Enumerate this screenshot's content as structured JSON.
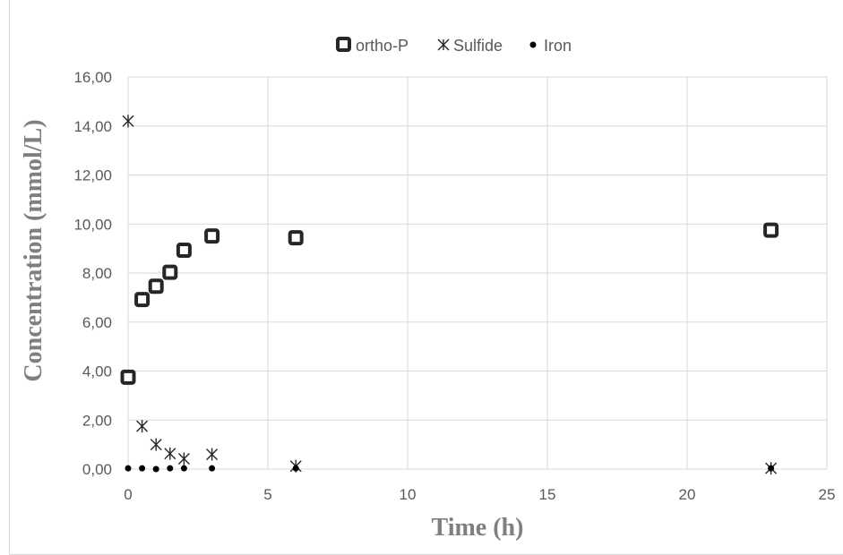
{
  "chart_data": {
    "type": "scatter",
    "title": "",
    "xlabel": "Time (h)",
    "ylabel": "Concentration (mmol/L)",
    "xlim": [
      0,
      25
    ],
    "ylim": [
      0,
      16
    ],
    "x_ticks": [
      "0",
      "5",
      "10",
      "15",
      "20",
      "25"
    ],
    "y_ticks": [
      "0,00",
      "2,00",
      "4,00",
      "6,00",
      "8,00",
      "10,00",
      "12,00",
      "14,00",
      "16,00"
    ],
    "grid": "on",
    "legend_position": "top",
    "series": [
      {
        "name": "ortho-P",
        "marker": "square",
        "color": "#262626",
        "points": [
          [
            0,
            3.75
          ],
          [
            0.5,
            6.92
          ],
          [
            1,
            7.46
          ],
          [
            1.5,
            8.03
          ],
          [
            2,
            8.93
          ],
          [
            3,
            9.51
          ],
          [
            6,
            9.44
          ],
          [
            23,
            9.75
          ]
        ]
      },
      {
        "name": "Sulfide",
        "marker": "asterisk",
        "color": "#262626",
        "points": [
          [
            0,
            14.2
          ],
          [
            0.5,
            1.75
          ],
          [
            1,
            1.0
          ],
          [
            1.5,
            0.63
          ],
          [
            2,
            0.42
          ],
          [
            3,
            0.6
          ],
          [
            6,
            0.12
          ],
          [
            23,
            0.03
          ]
        ]
      },
      {
        "name": "Iron",
        "marker": "dot",
        "color": "#000000",
        "points": [
          [
            0,
            0.03
          ],
          [
            0.5,
            0.03
          ],
          [
            1,
            0.0
          ],
          [
            1.5,
            0.03
          ],
          [
            2,
            0.03
          ],
          [
            3,
            0.03
          ],
          [
            6,
            0.03
          ],
          [
            23,
            0.03
          ]
        ]
      }
    ]
  }
}
